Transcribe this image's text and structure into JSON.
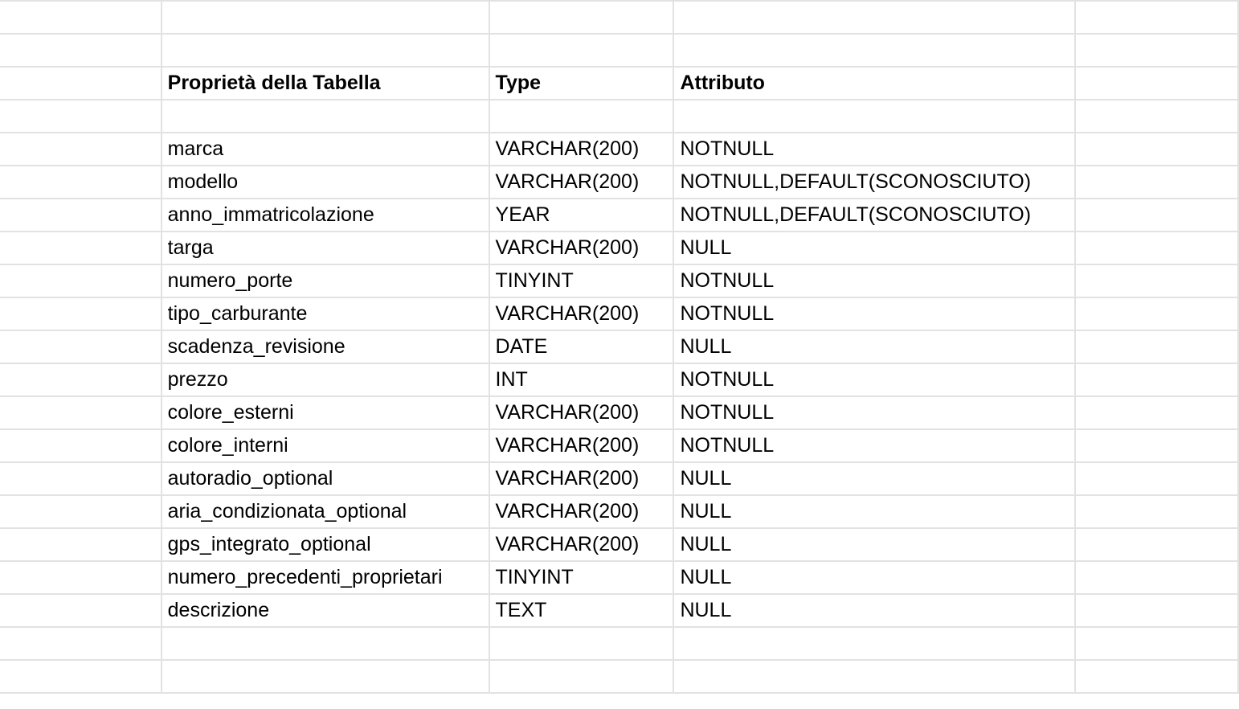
{
  "header": {
    "property": "Proprietà della Tabella",
    "type": "Type",
    "attribute": "Attributo"
  },
  "rows": [
    {
      "property": "marca",
      "type": "VARCHAR(200)",
      "attribute": "NOTNULL"
    },
    {
      "property": "modello",
      "type": "VARCHAR(200)",
      "attribute": "NOTNULL,DEFAULT(SCONOSCIUTO)"
    },
    {
      "property": "anno_immatricolazione",
      "type": "YEAR",
      "attribute": "NOTNULL,DEFAULT(SCONOSCIUTO)"
    },
    {
      "property": "targa",
      "type": "VARCHAR(200)",
      "attribute": "NULL"
    },
    {
      "property": "numero_porte",
      "type": "TINYINT",
      "attribute": "NOTNULL"
    },
    {
      "property": "tipo_carburante",
      "type": "VARCHAR(200)",
      "attribute": "NOTNULL"
    },
    {
      "property": "scadenza_revisione",
      "type": "DATE",
      "attribute": "NULL"
    },
    {
      "property": "prezzo",
      "type": "INT",
      "attribute": "NOTNULL"
    },
    {
      "property": "colore_esterni",
      "type": "VARCHAR(200)",
      "attribute": "NOTNULL"
    },
    {
      "property": "colore_interni",
      "type": "VARCHAR(200)",
      "attribute": "NOTNULL"
    },
    {
      "property": "autoradio_optional",
      "type": "VARCHAR(200)",
      "attribute": "NULL"
    },
    {
      "property": "aria_condizionata_optional",
      "type": "VARCHAR(200)",
      "attribute": "NULL"
    },
    {
      "property": "gps_integrato_optional",
      "type": "VARCHAR(200)",
      "attribute": "NULL"
    },
    {
      "property": "numero_precedenti_proprietari",
      "type": "TINYINT",
      "attribute": "NULL"
    },
    {
      "property": "descrizione",
      "type": "TEXT",
      "attribute": "NULL"
    }
  ]
}
